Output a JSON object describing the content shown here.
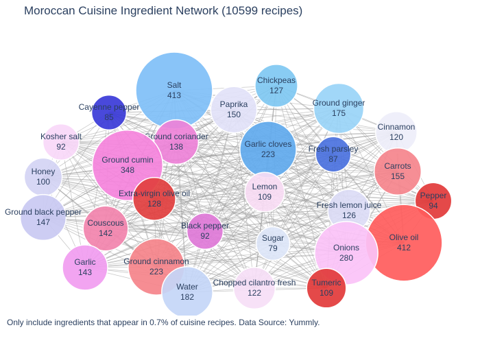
{
  "title": "Moroccan Cuisine Ingredient Network (10599 recipes)",
  "caption": "Only include ingredients that appear in 0.7% of cuisine recipes. Data Source: Yummly.",
  "chart_data": {
    "type": "network",
    "nodes": [
      {
        "name": "Salt",
        "count": 413,
        "color": "#7fbff7"
      },
      {
        "name": "Chickpeas",
        "count": 127,
        "color": "#7fc8f2"
      },
      {
        "name": "Cayenne pepper",
        "count": 85,
        "color": "#3a3ad8"
      },
      {
        "name": "Paprika",
        "count": 150,
        "color": "#e2e2f8"
      },
      {
        "name": "Ground ginger",
        "count": 175,
        "color": "#99d4f7"
      },
      {
        "name": "Cinnamon",
        "count": 120,
        "color": "#eeeefa"
      },
      {
        "name": "Kosher salt",
        "count": 92,
        "color": "#f8d8f8"
      },
      {
        "name": "Ground coriander",
        "count": 138,
        "color": "#ee82d8"
      },
      {
        "name": "Garlic cloves",
        "count": 223,
        "color": "#61aaee"
      },
      {
        "name": "Fresh parsley",
        "count": 87,
        "color": "#4b72e0"
      },
      {
        "name": "Ground cumin",
        "count": 348,
        "color": "#f583dc"
      },
      {
        "name": "Carrots",
        "count": 155,
        "color": "#f5848c"
      },
      {
        "name": "Honey",
        "count": 100,
        "color": "#d4d4f4"
      },
      {
        "name": "Lemon",
        "count": 109,
        "color": "#f8dcf4"
      },
      {
        "name": "Extra-virgin olive oil",
        "count": 128,
        "color": "#e23f3f"
      },
      {
        "name": "Pepper",
        "count": 94,
        "color": "#e23a3a"
      },
      {
        "name": "Fresh lemon juice",
        "count": 126,
        "color": "#dcdcf6"
      },
      {
        "name": "Ground black pepper",
        "count": 147,
        "color": "#c9c9f2"
      },
      {
        "name": "Couscous",
        "count": 142,
        "color": "#f283ac"
      },
      {
        "name": "Black pepper",
        "count": 92,
        "color": "#e07ad8"
      },
      {
        "name": "Olive oil",
        "count": 412,
        "color": "#ff5c5c"
      },
      {
        "name": "Sugar",
        "count": 79,
        "color": "#dde6f8"
      },
      {
        "name": "Onions",
        "count": 280,
        "color": "#fbc2f7"
      },
      {
        "name": "Garlic",
        "count": 143,
        "color": "#f19cf0"
      },
      {
        "name": "Ground cinnamon",
        "count": 223,
        "color": "#f5838a"
      },
      {
        "name": "Water",
        "count": 182,
        "color": "#c4d6f7"
      },
      {
        "name": "Chopped cilantro fresh",
        "count": 122,
        "color": "#f6def6"
      },
      {
        "name": "Tumeric",
        "count": 109,
        "color": "#e23a3a"
      }
    ]
  }
}
